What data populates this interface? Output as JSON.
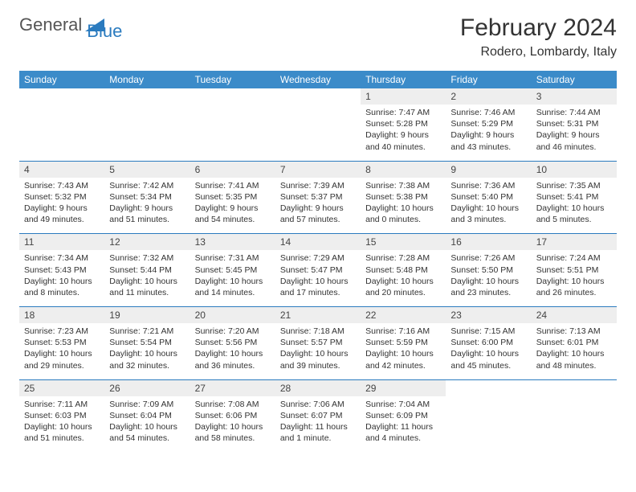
{
  "logo": {
    "part1": "General",
    "part2": "Blue"
  },
  "title": "February 2024",
  "location": "Rodero, Lombardy, Italy",
  "colors": {
    "header_bg": "#3b8bc9",
    "header_text": "#ffffff",
    "daynum_bg": "#eeeeee",
    "separator": "#2b7bbf",
    "body_text": "#333333",
    "logo_gray": "#555555",
    "logo_blue": "#2b7bbf"
  },
  "weekdays": [
    "Sunday",
    "Monday",
    "Tuesday",
    "Wednesday",
    "Thursday",
    "Friday",
    "Saturday"
  ],
  "weeks": [
    [
      null,
      null,
      null,
      null,
      {
        "n": "1",
        "sr": "7:47 AM",
        "ss": "5:28 PM",
        "dl": "9 hours and 40 minutes."
      },
      {
        "n": "2",
        "sr": "7:46 AM",
        "ss": "5:29 PM",
        "dl": "9 hours and 43 minutes."
      },
      {
        "n": "3",
        "sr": "7:44 AM",
        "ss": "5:31 PM",
        "dl": "9 hours and 46 minutes."
      }
    ],
    [
      {
        "n": "4",
        "sr": "7:43 AM",
        "ss": "5:32 PM",
        "dl": "9 hours and 49 minutes."
      },
      {
        "n": "5",
        "sr": "7:42 AM",
        "ss": "5:34 PM",
        "dl": "9 hours and 51 minutes."
      },
      {
        "n": "6",
        "sr": "7:41 AM",
        "ss": "5:35 PM",
        "dl": "9 hours and 54 minutes."
      },
      {
        "n": "7",
        "sr": "7:39 AM",
        "ss": "5:37 PM",
        "dl": "9 hours and 57 minutes."
      },
      {
        "n": "8",
        "sr": "7:38 AM",
        "ss": "5:38 PM",
        "dl": "10 hours and 0 minutes."
      },
      {
        "n": "9",
        "sr": "7:36 AM",
        "ss": "5:40 PM",
        "dl": "10 hours and 3 minutes."
      },
      {
        "n": "10",
        "sr": "7:35 AM",
        "ss": "5:41 PM",
        "dl": "10 hours and 5 minutes."
      }
    ],
    [
      {
        "n": "11",
        "sr": "7:34 AM",
        "ss": "5:43 PM",
        "dl": "10 hours and 8 minutes."
      },
      {
        "n": "12",
        "sr": "7:32 AM",
        "ss": "5:44 PM",
        "dl": "10 hours and 11 minutes."
      },
      {
        "n": "13",
        "sr": "7:31 AM",
        "ss": "5:45 PM",
        "dl": "10 hours and 14 minutes."
      },
      {
        "n": "14",
        "sr": "7:29 AM",
        "ss": "5:47 PM",
        "dl": "10 hours and 17 minutes."
      },
      {
        "n": "15",
        "sr": "7:28 AM",
        "ss": "5:48 PM",
        "dl": "10 hours and 20 minutes."
      },
      {
        "n": "16",
        "sr": "7:26 AM",
        "ss": "5:50 PM",
        "dl": "10 hours and 23 minutes."
      },
      {
        "n": "17",
        "sr": "7:24 AM",
        "ss": "5:51 PM",
        "dl": "10 hours and 26 minutes."
      }
    ],
    [
      {
        "n": "18",
        "sr": "7:23 AM",
        "ss": "5:53 PM",
        "dl": "10 hours and 29 minutes."
      },
      {
        "n": "19",
        "sr": "7:21 AM",
        "ss": "5:54 PM",
        "dl": "10 hours and 32 minutes."
      },
      {
        "n": "20",
        "sr": "7:20 AM",
        "ss": "5:56 PM",
        "dl": "10 hours and 36 minutes."
      },
      {
        "n": "21",
        "sr": "7:18 AM",
        "ss": "5:57 PM",
        "dl": "10 hours and 39 minutes."
      },
      {
        "n": "22",
        "sr": "7:16 AM",
        "ss": "5:59 PM",
        "dl": "10 hours and 42 minutes."
      },
      {
        "n": "23",
        "sr": "7:15 AM",
        "ss": "6:00 PM",
        "dl": "10 hours and 45 minutes."
      },
      {
        "n": "24",
        "sr": "7:13 AM",
        "ss": "6:01 PM",
        "dl": "10 hours and 48 minutes."
      }
    ],
    [
      {
        "n": "25",
        "sr": "7:11 AM",
        "ss": "6:03 PM",
        "dl": "10 hours and 51 minutes."
      },
      {
        "n": "26",
        "sr": "7:09 AM",
        "ss": "6:04 PM",
        "dl": "10 hours and 54 minutes."
      },
      {
        "n": "27",
        "sr": "7:08 AM",
        "ss": "6:06 PM",
        "dl": "10 hours and 58 minutes."
      },
      {
        "n": "28",
        "sr": "7:06 AM",
        "ss": "6:07 PM",
        "dl": "11 hours and 1 minute."
      },
      {
        "n": "29",
        "sr": "7:04 AM",
        "ss": "6:09 PM",
        "dl": "11 hours and 4 minutes."
      },
      null,
      null
    ]
  ],
  "labels": {
    "sunrise": "Sunrise:",
    "sunset": "Sunset:",
    "daylight": "Daylight:"
  }
}
